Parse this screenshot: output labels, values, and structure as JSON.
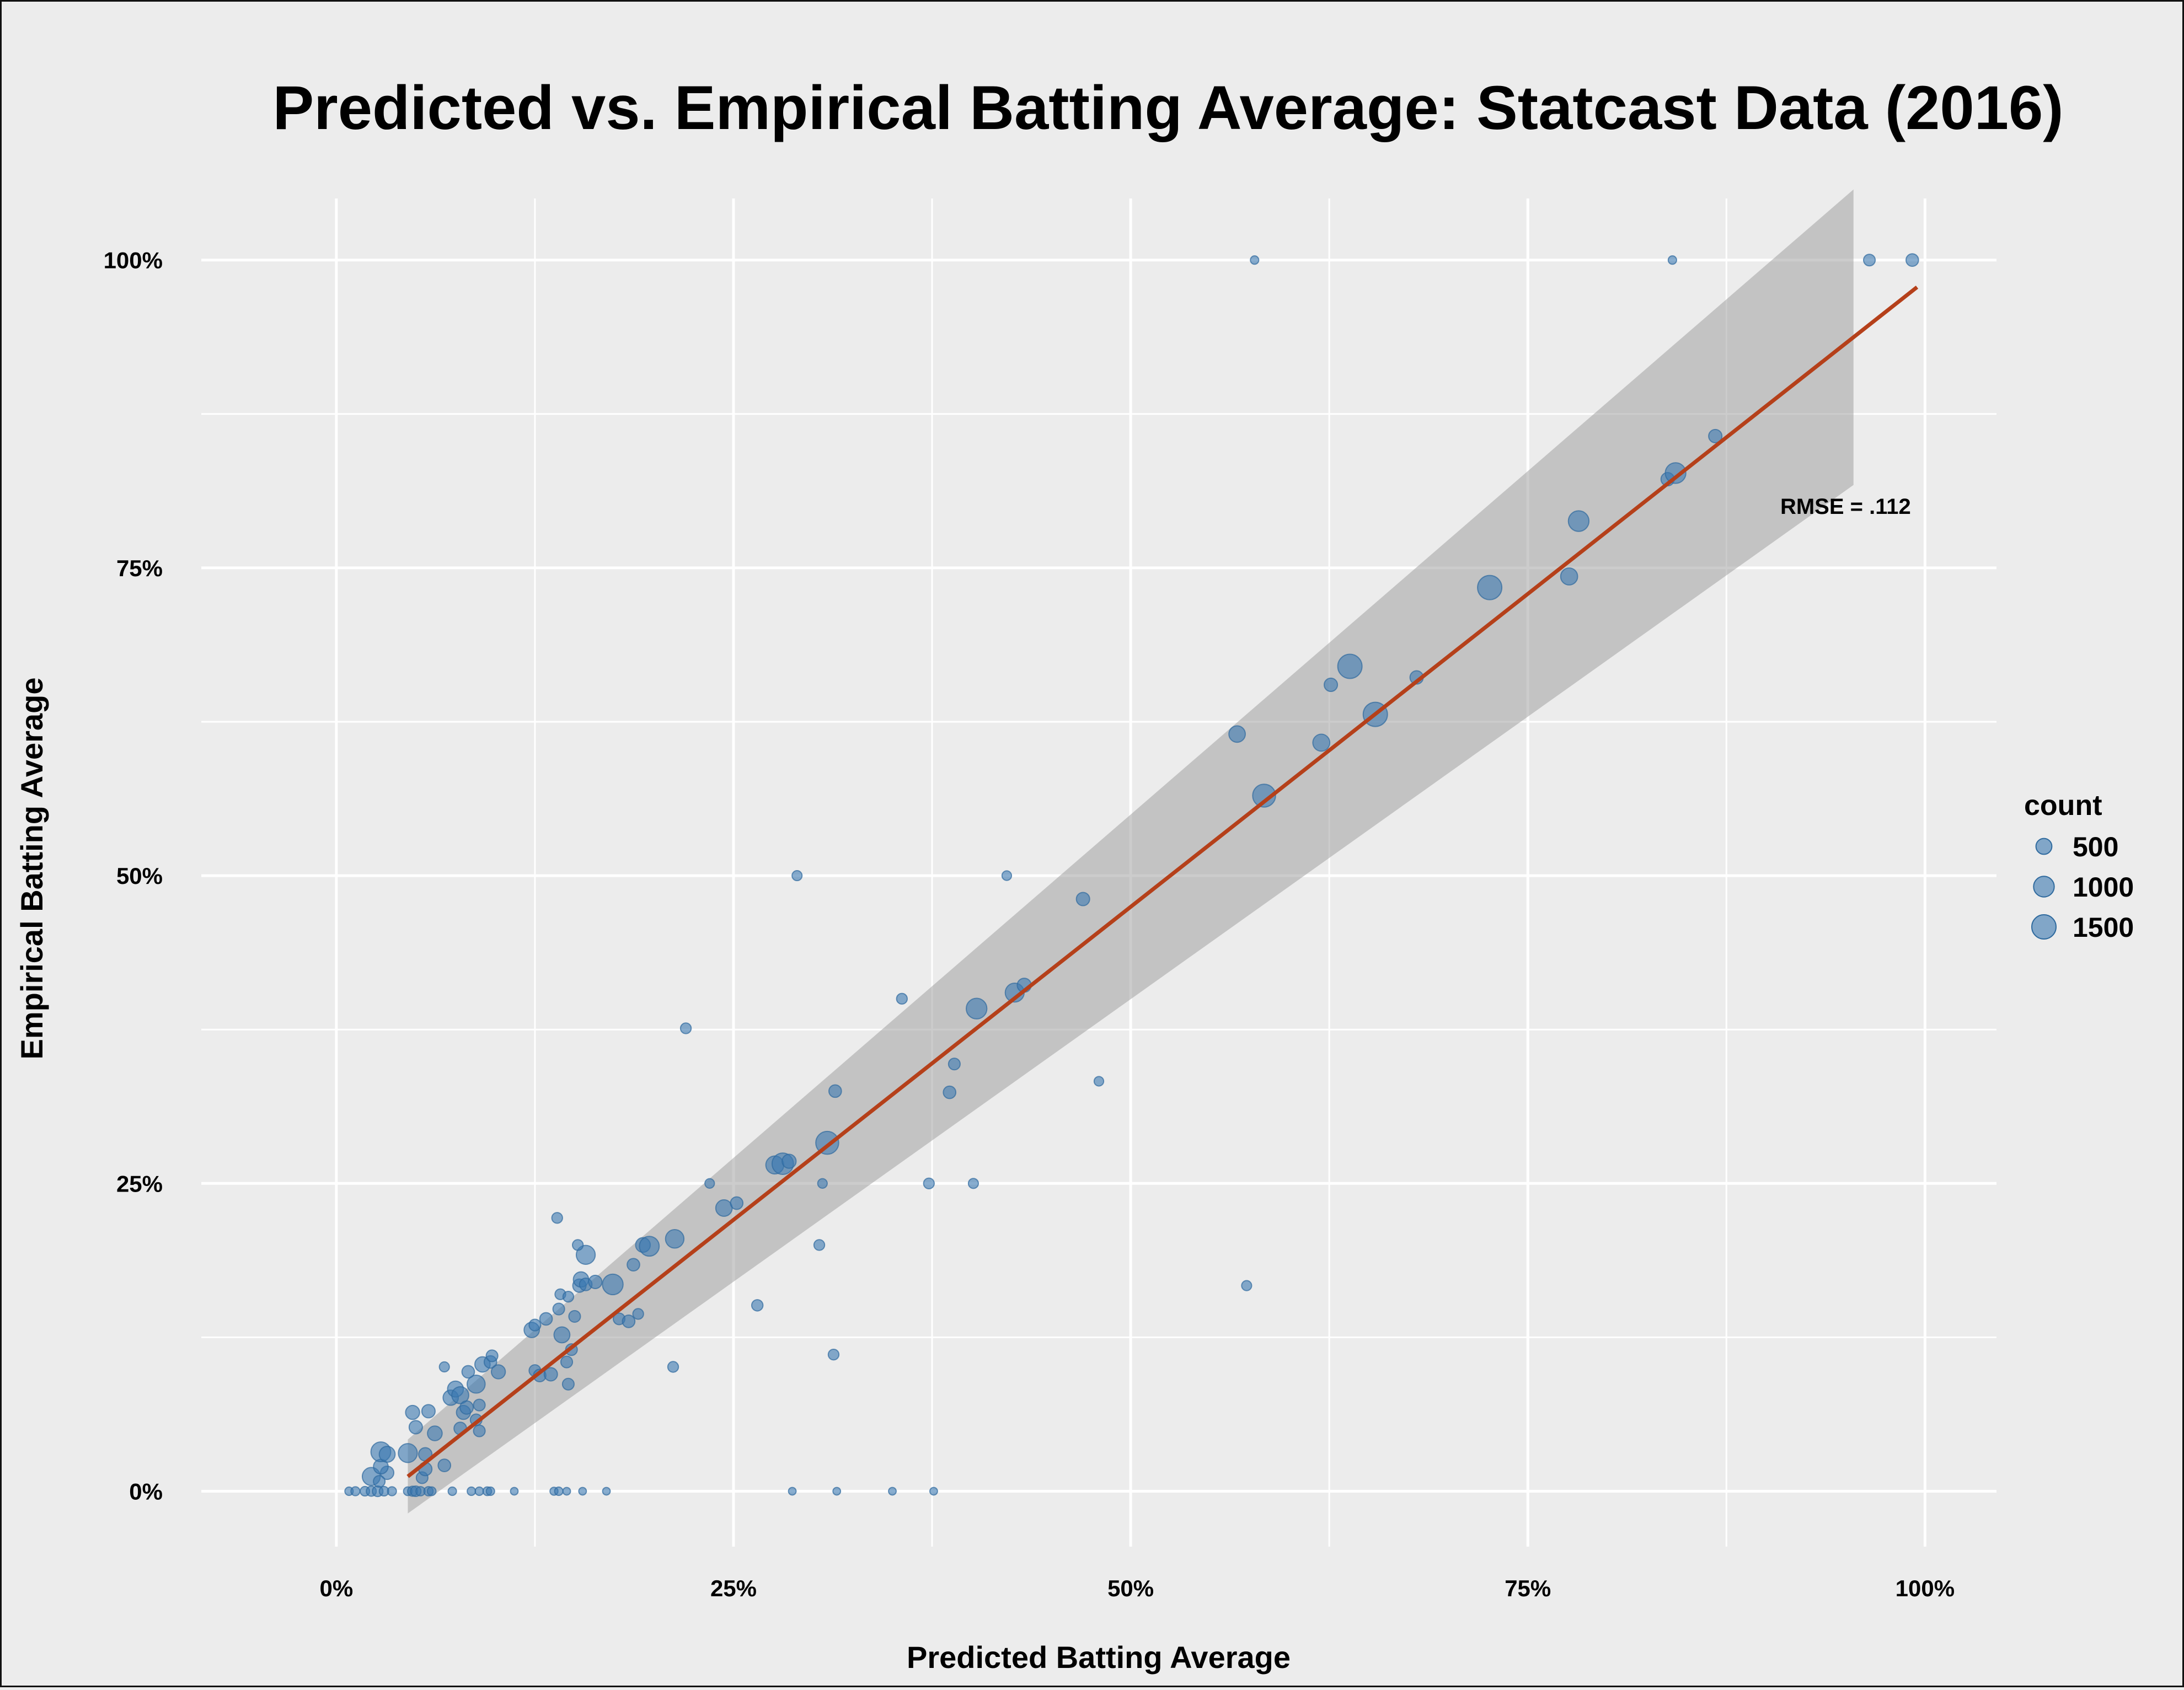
{
  "chart_data": {
    "type": "scatter",
    "title": "Predicted vs. Empirical Batting Average: Statcast Data (2016)",
    "xlabel": "Predicted Batting Average",
    "ylabel": "Empirical Batting Average",
    "xlim": [
      -0.085,
      1.045
    ],
    "ylim": [
      -0.045,
      1.05
    ],
    "x_ticks": [
      0,
      0.25,
      0.5,
      0.75,
      1.0
    ],
    "x_tick_labels": [
      "0%",
      "25%",
      "50%",
      "75%",
      "100%"
    ],
    "y_ticks": [
      0,
      0.25,
      0.5,
      0.75,
      1.0
    ],
    "y_tick_labels": [
      "0%",
      "25%",
      "50%",
      "75%",
      "100%"
    ],
    "grid": true,
    "annotation": {
      "text": "RMSE = .112",
      "x": 0.95,
      "y": 0.8
    },
    "fit_line": {
      "x": [
        0.045,
        0.995
      ],
      "y": [
        0.012,
        0.978
      ],
      "ci_width_start": 0.03,
      "ci_width_end": 0.12,
      "ci_end_x": 0.955,
      "color": "#b5401a"
    },
    "point_color": "#3b78b0",
    "legend": {
      "title": "count",
      "placement": "right",
      "entries": [
        {
          "label": "500",
          "count": 500
        },
        {
          "label": "1000",
          "count": 1000
        },
        {
          "label": "1500",
          "count": 1500
        }
      ]
    },
    "points": [
      {
        "x": 0.008,
        "y": 0.0,
        "count": 60
      },
      {
        "x": 0.012,
        "y": 0.0,
        "count": 80
      },
      {
        "x": 0.018,
        "y": 0.0,
        "count": 100
      },
      {
        "x": 0.022,
        "y": 0.0,
        "count": 120
      },
      {
        "x": 0.026,
        "y": 0.0,
        "count": 150
      },
      {
        "x": 0.03,
        "y": 0.0,
        "count": 100
      },
      {
        "x": 0.035,
        "y": 0.0,
        "count": 80
      },
      {
        "x": 0.045,
        "y": 0.0,
        "count": 70
      },
      {
        "x": 0.048,
        "y": 0.0,
        "count": 120
      },
      {
        "x": 0.05,
        "y": 0.0,
        "count": 140
      },
      {
        "x": 0.053,
        "y": 0.0,
        "count": 90
      },
      {
        "x": 0.058,
        "y": 0.0,
        "count": 90
      },
      {
        "x": 0.06,
        "y": 0.0,
        "count": 70
      },
      {
        "x": 0.073,
        "y": 0.0,
        "count": 60
      },
      {
        "x": 0.085,
        "y": 0.0,
        "count": 60
      },
      {
        "x": 0.09,
        "y": 0.0,
        "count": 60
      },
      {
        "x": 0.095,
        "y": 0.0,
        "count": 70
      },
      {
        "x": 0.097,
        "y": 0.0,
        "count": 60
      },
      {
        "x": 0.112,
        "y": 0.0,
        "count": 40
      },
      {
        "x": 0.137,
        "y": 0.0,
        "count": 50
      },
      {
        "x": 0.14,
        "y": 0.0,
        "count": 60
      },
      {
        "x": 0.145,
        "y": 0.0,
        "count": 40
      },
      {
        "x": 0.155,
        "y": 0.0,
        "count": 40
      },
      {
        "x": 0.17,
        "y": 0.0,
        "count": 40
      },
      {
        "x": 0.287,
        "y": 0.0,
        "count": 40
      },
      {
        "x": 0.315,
        "y": 0.0,
        "count": 40
      },
      {
        "x": 0.35,
        "y": 0.0,
        "count": 40
      },
      {
        "x": 0.376,
        "y": 0.0,
        "count": 40
      },
      {
        "x": 0.022,
        "y": 0.012,
        "count": 700
      },
      {
        "x": 0.032,
        "y": 0.015,
        "count": 300
      },
      {
        "x": 0.027,
        "y": 0.008,
        "count": 200
      },
      {
        "x": 0.028,
        "y": 0.02,
        "count": 400
      },
      {
        "x": 0.028,
        "y": 0.032,
        "count": 900
      },
      {
        "x": 0.032,
        "y": 0.03,
        "count": 500
      },
      {
        "x": 0.045,
        "y": 0.031,
        "count": 800
      },
      {
        "x": 0.054,
        "y": 0.011,
        "count": 200
      },
      {
        "x": 0.056,
        "y": 0.018,
        "count": 300
      },
      {
        "x": 0.056,
        "y": 0.03,
        "count": 300
      },
      {
        "x": 0.062,
        "y": 0.047,
        "count": 400
      },
      {
        "x": 0.05,
        "y": 0.052,
        "count": 300
      },
      {
        "x": 0.048,
        "y": 0.064,
        "count": 350
      },
      {
        "x": 0.058,
        "y": 0.065,
        "count": 300
      },
      {
        "x": 0.068,
        "y": 0.021,
        "count": 250
      },
      {
        "x": 0.072,
        "y": 0.076,
        "count": 450
      },
      {
        "x": 0.075,
        "y": 0.083,
        "count": 500
      },
      {
        "x": 0.078,
        "y": 0.078,
        "count": 600
      },
      {
        "x": 0.078,
        "y": 0.051,
        "count": 250
      },
      {
        "x": 0.08,
        "y": 0.064,
        "count": 350
      },
      {
        "x": 0.082,
        "y": 0.068,
        "count": 300
      },
      {
        "x": 0.088,
        "y": 0.058,
        "count": 200
      },
      {
        "x": 0.09,
        "y": 0.049,
        "count": 200
      },
      {
        "x": 0.09,
        "y": 0.07,
        "count": 200
      },
      {
        "x": 0.088,
        "y": 0.087,
        "count": 700
      },
      {
        "x": 0.083,
        "y": 0.097,
        "count": 250
      },
      {
        "x": 0.068,
        "y": 0.101,
        "count": 120
      },
      {
        "x": 0.092,
        "y": 0.103,
        "count": 450
      },
      {
        "x": 0.097,
        "y": 0.105,
        "count": 250
      },
      {
        "x": 0.098,
        "y": 0.11,
        "count": 200
      },
      {
        "x": 0.102,
        "y": 0.097,
        "count": 350
      },
      {
        "x": 0.125,
        "y": 0.098,
        "count": 200
      },
      {
        "x": 0.128,
        "y": 0.094,
        "count": 250
      },
      {
        "x": 0.135,
        "y": 0.095,
        "count": 300
      },
      {
        "x": 0.146,
        "y": 0.087,
        "count": 200
      },
      {
        "x": 0.145,
        "y": 0.105,
        "count": 200
      },
      {
        "x": 0.148,
        "y": 0.115,
        "count": 200
      },
      {
        "x": 0.142,
        "y": 0.127,
        "count": 500
      },
      {
        "x": 0.123,
        "y": 0.131,
        "count": 450
      },
      {
        "x": 0.125,
        "y": 0.135,
        "count": 200
      },
      {
        "x": 0.132,
        "y": 0.14,
        "count": 250
      },
      {
        "x": 0.14,
        "y": 0.148,
        "count": 200
      },
      {
        "x": 0.15,
        "y": 0.142,
        "count": 200
      },
      {
        "x": 0.141,
        "y": 0.16,
        "count": 150
      },
      {
        "x": 0.146,
        "y": 0.158,
        "count": 150
      },
      {
        "x": 0.153,
        "y": 0.167,
        "count": 300
      },
      {
        "x": 0.154,
        "y": 0.172,
        "count": 450
      },
      {
        "x": 0.157,
        "y": 0.168,
        "count": 250
      },
      {
        "x": 0.163,
        "y": 0.17,
        "count": 300
      },
      {
        "x": 0.174,
        "y": 0.168,
        "count": 1000
      },
      {
        "x": 0.157,
        "y": 0.192,
        "count": 800
      },
      {
        "x": 0.152,
        "y": 0.2,
        "count": 150
      },
      {
        "x": 0.139,
        "y": 0.222,
        "count": 150
      },
      {
        "x": 0.178,
        "y": 0.14,
        "count": 200
      },
      {
        "x": 0.184,
        "y": 0.138,
        "count": 250
      },
      {
        "x": 0.19,
        "y": 0.144,
        "count": 150
      },
      {
        "x": 0.187,
        "y": 0.184,
        "count": 250
      },
      {
        "x": 0.193,
        "y": 0.2,
        "count": 400
      },
      {
        "x": 0.197,
        "y": 0.199,
        "count": 900
      },
      {
        "x": 0.213,
        "y": 0.205,
        "count": 750
      },
      {
        "x": 0.212,
        "y": 0.101,
        "count": 150
      },
      {
        "x": 0.22,
        "y": 0.376,
        "count": 150
      },
      {
        "x": 0.235,
        "y": 0.25,
        "count": 100
      },
      {
        "x": 0.244,
        "y": 0.23,
        "count": 550
      },
      {
        "x": 0.252,
        "y": 0.234,
        "count": 250
      },
      {
        "x": 0.265,
        "y": 0.151,
        "count": 180
      },
      {
        "x": 0.276,
        "y": 0.265,
        "count": 700
      },
      {
        "x": 0.281,
        "y": 0.266,
        "count": 1100
      },
      {
        "x": 0.285,
        "y": 0.268,
        "count": 350
      },
      {
        "x": 0.29,
        "y": 0.5,
        "count": 120
      },
      {
        "x": 0.304,
        "y": 0.2,
        "count": 150
      },
      {
        "x": 0.306,
        "y": 0.25,
        "count": 100
      },
      {
        "x": 0.309,
        "y": 0.283,
        "count": 1300
      },
      {
        "x": 0.314,
        "y": 0.325,
        "count": 250
      },
      {
        "x": 0.313,
        "y": 0.111,
        "count": 150
      },
      {
        "x": 0.356,
        "y": 0.4,
        "count": 150
      },
      {
        "x": 0.373,
        "y": 0.25,
        "count": 150
      },
      {
        "x": 0.386,
        "y": 0.324,
        "count": 250
      },
      {
        "x": 0.389,
        "y": 0.347,
        "count": 200
      },
      {
        "x": 0.401,
        "y": 0.25,
        "count": 120
      },
      {
        "x": 0.403,
        "y": 0.392,
        "count": 1000
      },
      {
        "x": 0.427,
        "y": 0.405,
        "count": 800
      },
      {
        "x": 0.433,
        "y": 0.411,
        "count": 350
      },
      {
        "x": 0.422,
        "y": 0.5,
        "count": 100
      },
      {
        "x": 0.47,
        "y": 0.481,
        "count": 300
      },
      {
        "x": 0.48,
        "y": 0.333,
        "count": 100
      },
      {
        "x": 0.573,
        "y": 0.167,
        "count": 120
      },
      {
        "x": 0.567,
        "y": 0.615,
        "count": 550
      },
      {
        "x": 0.584,
        "y": 0.565,
        "count": 1300
      },
      {
        "x": 0.578,
        "y": 1.0,
        "count": 60
      },
      {
        "x": 0.62,
        "y": 0.608,
        "count": 600
      },
      {
        "x": 0.626,
        "y": 0.655,
        "count": 300
      },
      {
        "x": 0.638,
        "y": 0.67,
        "count": 1500
      },
      {
        "x": 0.654,
        "y": 0.631,
        "count": 1500
      },
      {
        "x": 0.68,
        "y": 0.661,
        "count": 300
      },
      {
        "x": 0.726,
        "y": 0.734,
        "count": 1500
      },
      {
        "x": 0.776,
        "y": 0.743,
        "count": 600
      },
      {
        "x": 0.782,
        "y": 0.788,
        "count": 1000
      },
      {
        "x": 0.838,
        "y": 0.822,
        "count": 300
      },
      {
        "x": 0.843,
        "y": 0.827,
        "count": 1000
      },
      {
        "x": 0.841,
        "y": 1.0,
        "count": 60
      },
      {
        "x": 0.868,
        "y": 0.857,
        "count": 300
      },
      {
        "x": 0.965,
        "y": 1.0,
        "count": 200
      },
      {
        "x": 0.992,
        "y": 1.0,
        "count": 250
      }
    ]
  }
}
